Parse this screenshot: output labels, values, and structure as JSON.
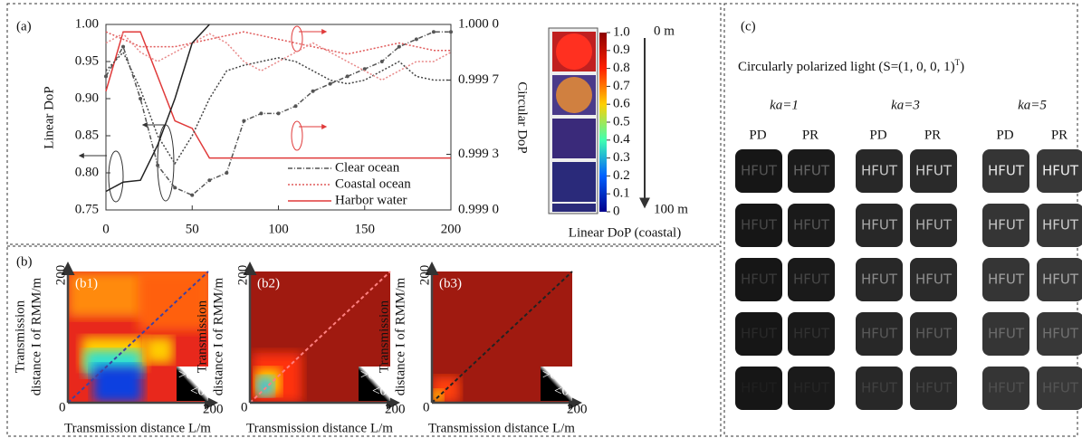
{
  "chart_data": {
    "type": "line",
    "label": "(a)",
    "y_label": "Linear DoP",
    "y2_label": "Circular DoP",
    "x": [
      0,
      10,
      20,
      30,
      40,
      50,
      60,
      70,
      80,
      90,
      100,
      110,
      120,
      130,
      140,
      150,
      160,
      170,
      180,
      190,
      200
    ],
    "xlim": [
      0,
      200
    ],
    "xticks": [
      0,
      50,
      100,
      150,
      200
    ],
    "ylim": [
      0.75,
      1.0
    ],
    "yticks": [
      {
        "value": 0.75,
        "label": "0.75"
      },
      {
        "value": 0.8,
        "label": "0.80"
      },
      {
        "value": 0.85,
        "label": "0.85"
      },
      {
        "value": 0.9,
        "label": "0.90"
      },
      {
        "value": 0.95,
        "label": "0.95"
      },
      {
        "value": 1.0,
        "label": "1.00"
      }
    ],
    "y2lim": [
      0.999,
      1.0
    ],
    "y2ticks": [
      {
        "value": 0.999,
        "label": "0.999 0"
      },
      {
        "value": 0.9993,
        "label": "0.999 3"
      },
      {
        "value": 0.9997,
        "label": "0.999 7"
      },
      {
        "value": 1.0,
        "label": "1.000 0"
      }
    ],
    "legend": "lower right",
    "series": [
      {
        "name": "Clear ocean",
        "color": "#555555",
        "style": "markers",
        "values": [
          0.93,
          0.97,
          0.9,
          0.81,
          0.78,
          0.77,
          0.79,
          0.8,
          0.87,
          0.88,
          0.88,
          0.89,
          0.91,
          0.92,
          0.93,
          0.94,
          0.95,
          0.97,
          0.98,
          0.99,
          0.99
        ]
      },
      {
        "name": "Coastal ocean",
        "color": "#e05a5a",
        "style": "dotted",
        "values": [
          0.99,
          0.98,
          0.97,
          0.97,
          0.97,
          0.975,
          0.98,
          0.985,
          0.99,
          0.985,
          0.98,
          0.975,
          0.97,
          0.965,
          0.96,
          0.965,
          0.97,
          0.975,
          0.97,
          0.965,
          0.965
        ]
      },
      {
        "name": "Harbor water",
        "color": "#e03a3a",
        "style": "solid",
        "values": [
          0.91,
          0.99,
          0.99,
          0.93,
          0.87,
          0.86,
          0.82,
          0.82,
          0.82,
          0.82,
          0.82,
          0.82,
          0.82,
          0.82,
          0.82,
          0.82,
          0.82,
          0.82,
          0.82,
          0.82,
          0.82
        ]
      },
      {
        "color": "#444444",
        "style": "dotted",
        "axis": "y2",
        "values": [
          0.99975,
          0.99985,
          0.99965,
          0.9994,
          0.99925,
          0.9994,
          0.9996,
          0.99975,
          0.99978,
          0.9998,
          0.99982,
          0.9998,
          0.99975,
          0.9997,
          0.99968,
          0.9997,
          0.99975,
          0.9998,
          0.99972,
          0.9997,
          0.9997
        ]
      },
      {
        "color": "#e88888",
        "style": "dotted",
        "axis": "y2",
        "values": [
          0.9999,
          0.99995,
          0.99985,
          0.9998,
          0.99985,
          0.9999,
          0.99995,
          0.9999,
          0.9998,
          0.99975,
          0.9998,
          0.99985,
          0.9999,
          0.99985,
          0.9998,
          0.99975,
          0.9997,
          0.99975,
          0.9998,
          0.9998,
          0.99985
        ]
      },
      {
        "color": "#222222",
        "style": "solid",
        "axis": "y2",
        "values": [
          0.9991,
          0.99915,
          0.99916,
          0.99935,
          0.9996,
          0.9999,
          1.0,
          null,
          null,
          null,
          null,
          null,
          null,
          null,
          null,
          null,
          null,
          null,
          null,
          null,
          null
        ]
      }
    ]
  },
  "colorbar": {
    "label": "Linear DoP (coastal)",
    "top_depth": "0 m",
    "bottom_depth": "100 m",
    "ticks": [
      {
        "value": 1.0,
        "label": "1.0"
      },
      0.9,
      0.8,
      0.7,
      0.6,
      0.5,
      0.4,
      0.3,
      0.2,
      0.1,
      0
    ]
  },
  "panel_b": {
    "label": "(b)",
    "x_label": "Transmission distance L/m",
    "y_label": [
      "Transmission",
      "distance I of RMM/m"
    ],
    "plots": [
      "(b1)",
      "(b2)",
      "(b3)"
    ],
    "axis_max": "200",
    "origin": "0",
    "positive": ">0",
    "negative": "<0"
  },
  "panel_c": {
    "label": "(c)",
    "title": "Circularly polarized light (S=(1, 0, 0, 1)",
    "title_sup": "T",
    "title_end": ")",
    "groups": [
      "ka=1",
      "ka=3",
      "ka=5"
    ],
    "columns": [
      "PD",
      "PR"
    ],
    "image_text": "HFUT"
  }
}
